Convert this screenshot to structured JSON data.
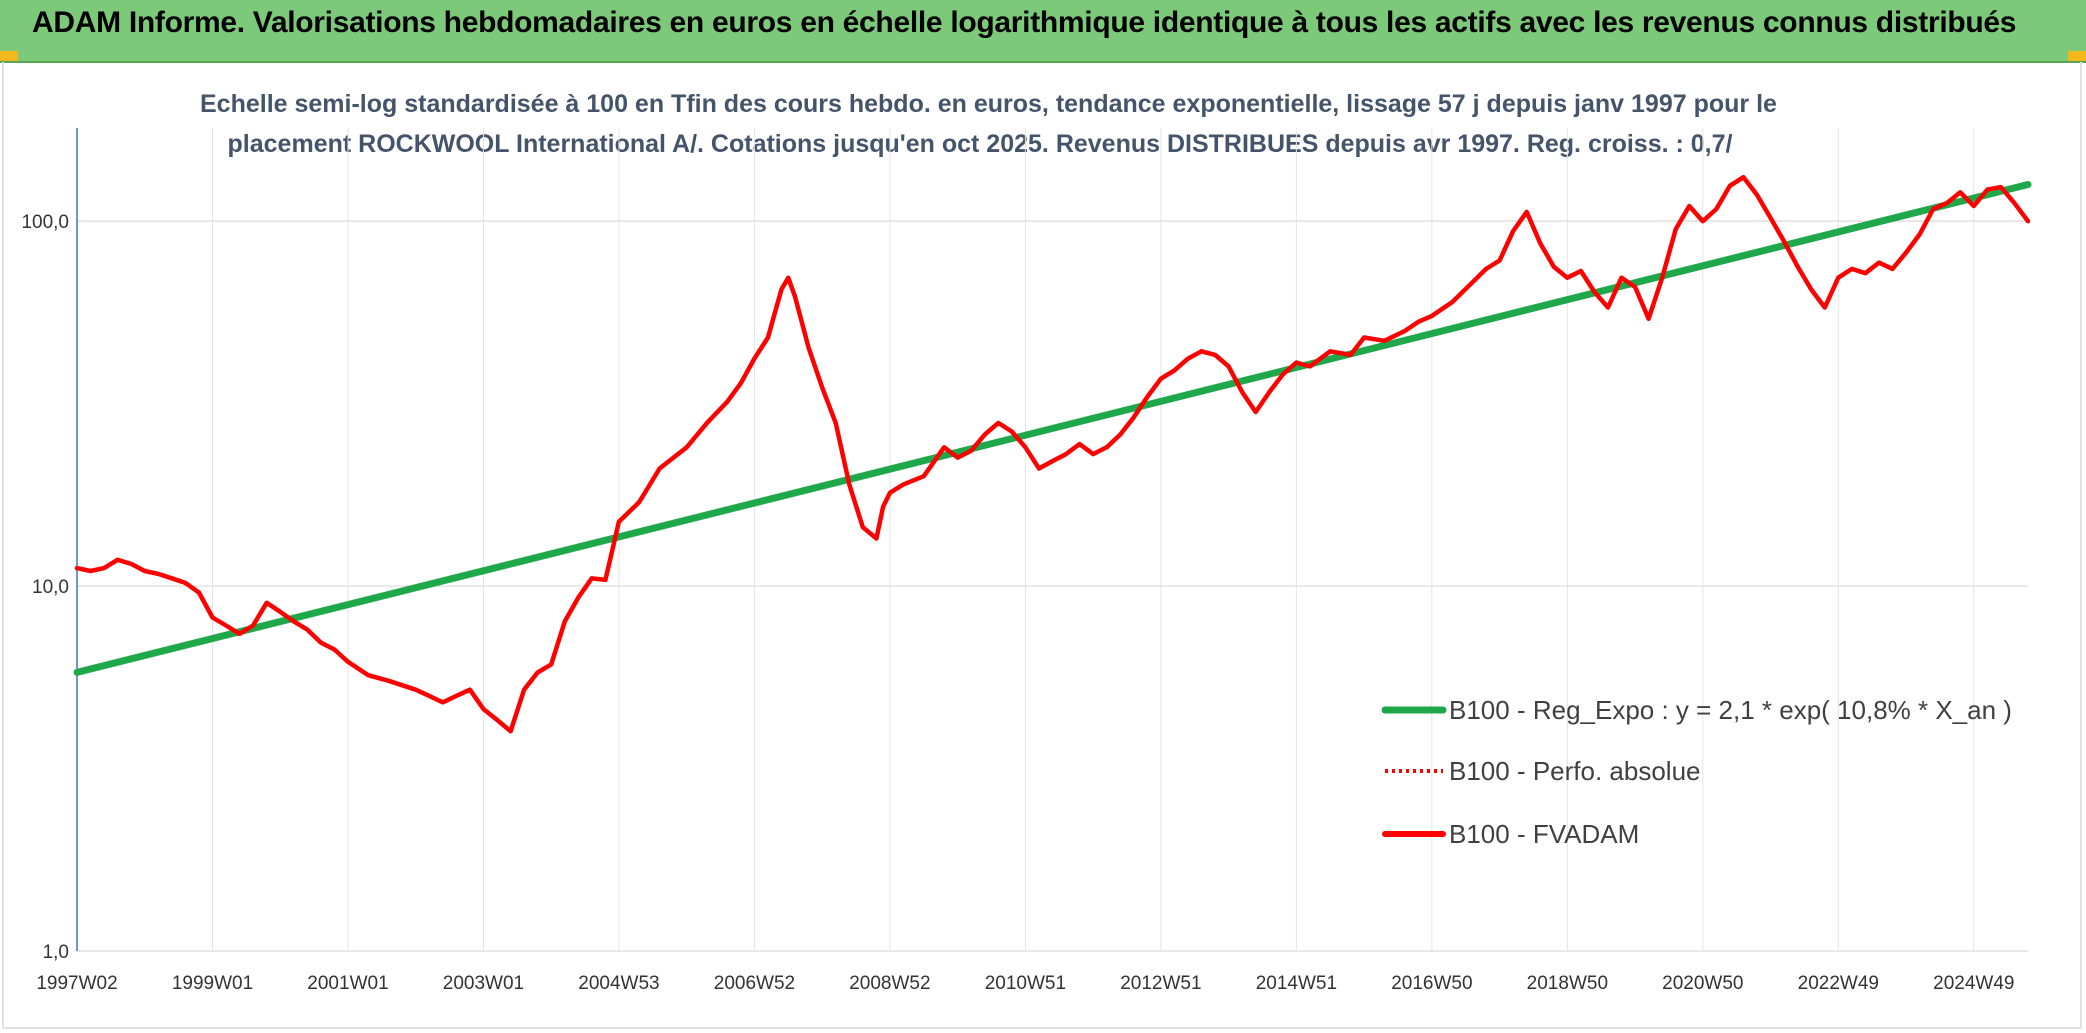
{
  "page_title": "ADAM Informe. Valorisations hebdomadaires en euros en échelle logarithmique identique à tous les actifs avec les revenus connus distribués",
  "colors": {
    "banner": "#7dc97a",
    "regression": "#1fa84a",
    "series": "#ff0000",
    "subtitle": "#44546a"
  },
  "chart_data": {
    "type": "line",
    "title_line1": "Echelle semi-log standardisée à 100 en Tfin des cours hebdo. en euros, tendance exponentielle, lissage 57 j depuis janv 1997 pour le",
    "title_line2": "placement ROCKWOOL International A/. Cotations jusqu'en oct 2025. Revenus DISTRIBUES depuis avr 1997. Reg. croiss. : 0,7/",
    "y_scale": "log",
    "ylim": [
      1,
      180
    ],
    "y_ticks": [
      {
        "value": 1,
        "label": "1,0"
      },
      {
        "value": 10,
        "label": "10,0"
      },
      {
        "value": 100,
        "label": "100,0"
      }
    ],
    "xlim": [
      1997.0,
      2025.8
    ],
    "x_ticks": [
      {
        "year": 1997.0,
        "label": "1997W02"
      },
      {
        "year": 1999.0,
        "label": "1999W01"
      },
      {
        "year": 2001.0,
        "label": "2001W01"
      },
      {
        "year": 2003.0,
        "label": "2003W01"
      },
      {
        "year": 2005.0,
        "label": "2004W53"
      },
      {
        "year": 2007.0,
        "label": "2006W52"
      },
      {
        "year": 2009.0,
        "label": "2008W52"
      },
      {
        "year": 2011.0,
        "label": "2010W51"
      },
      {
        "year": 2013.0,
        "label": "2012W51"
      },
      {
        "year": 2015.0,
        "label": "2014W51"
      },
      {
        "year": 2017.0,
        "label": "2016W50"
      },
      {
        "year": 2019.0,
        "label": "2018W50"
      },
      {
        "year": 2021.0,
        "label": "2020W50"
      },
      {
        "year": 2023.0,
        "label": "2022W49"
      },
      {
        "year": 2025.0,
        "label": "2024W49"
      }
    ],
    "legend_position": "bottom-right",
    "series": [
      {
        "name": "B100 - Reg_Expo : y = 2,1 * exp( 10,8% *  X_an )",
        "style": "solid-thick",
        "color": "#1fa84a",
        "x": [
          1997.0,
          2025.8
        ],
        "y": [
          5.8,
          126
        ]
      },
      {
        "name": "B100 - Perfo. absolue",
        "style": "dotted",
        "color": "#ff0000",
        "x": [],
        "y": []
      },
      {
        "name": "B100 - FVADAM",
        "style": "solid",
        "color": "#ff0000",
        "x": [
          1997.0,
          1997.2,
          1997.4,
          1997.6,
          1997.8,
          1998.0,
          1998.2,
          1998.4,
          1998.6,
          1998.8,
          1999.0,
          1999.2,
          1999.4,
          1999.6,
          1999.8,
          2000.0,
          2000.2,
          2000.4,
          2000.6,
          2000.8,
          2001.0,
          2001.3,
          2001.6,
          2002.0,
          2002.2,
          2002.4,
          2002.6,
          2002.8,
          2003.0,
          2003.2,
          2003.4,
          2003.6,
          2003.8,
          2004.0,
          2004.2,
          2004.4,
          2004.6,
          2004.8,
          2005.0,
          2005.3,
          2005.6,
          2006.0,
          2006.3,
          2006.6,
          2006.8,
          2007.0,
          2007.2,
          2007.3,
          2007.4,
          2007.5,
          2007.6,
          2007.8,
          2008.0,
          2008.2,
          2008.4,
          2008.6,
          2008.8,
          2008.9,
          2009.0,
          2009.2,
          2009.5,
          2009.8,
          2010.0,
          2010.2,
          2010.4,
          2010.6,
          2010.8,
          2011.0,
          2011.2,
          2011.4,
          2011.6,
          2011.8,
          2012.0,
          2012.2,
          2012.4,
          2012.6,
          2012.8,
          2013.0,
          2013.2,
          2013.4,
          2013.6,
          2013.8,
          2014.0,
          2014.2,
          2014.4,
          2014.6,
          2014.8,
          2015.0,
          2015.2,
          2015.5,
          2015.8,
          2016.0,
          2016.3,
          2016.6,
          2016.8,
          2017.0,
          2017.3,
          2017.6,
          2017.8,
          2018.0,
          2018.2,
          2018.4,
          2018.6,
          2018.8,
          2019.0,
          2019.2,
          2019.4,
          2019.6,
          2019.8,
          2020.0,
          2020.2,
          2020.4,
          2020.6,
          2020.8,
          2021.0,
          2021.2,
          2021.4,
          2021.6,
          2021.8,
          2022.0,
          2022.2,
          2022.4,
          2022.6,
          2022.8,
          2023.0,
          2023.2,
          2023.4,
          2023.6,
          2023.8,
          2024.0,
          2024.2,
          2024.4,
          2024.6,
          2024.8,
          2025.0,
          2025.2,
          2025.4,
          2025.6,
          2025.8
        ],
        "y": [
          11.2,
          11.0,
          11.2,
          11.8,
          11.5,
          11.0,
          10.8,
          10.5,
          10.2,
          9.6,
          8.2,
          7.8,
          7.4,
          7.8,
          9.0,
          8.5,
          8.0,
          7.6,
          7.0,
          6.7,
          6.2,
          5.7,
          5.5,
          5.2,
          5.0,
          4.8,
          5.0,
          5.2,
          4.6,
          4.3,
          4.0,
          5.2,
          5.8,
          6.1,
          8.0,
          9.3,
          10.5,
          10.4,
          15.0,
          17.0,
          21.0,
          24.0,
          28.0,
          32.0,
          36.0,
          42.0,
          48.0,
          56.0,
          65.0,
          70.0,
          62.0,
          45.0,
          35.0,
          28.0,
          19.0,
          14.5,
          13.5,
          16.5,
          18.0,
          19.0,
          20.0,
          24.0,
          22.5,
          23.5,
          26.0,
          28.0,
          26.5,
          24.0,
          21.0,
          22.0,
          23.0,
          24.5,
          23.0,
          24.0,
          26.0,
          29.0,
          33.0,
          37.0,
          39.0,
          42.0,
          44.0,
          43.0,
          40.0,
          34.0,
          30.0,
          34.0,
          38.0,
          41.0,
          40.0,
          44.0,
          43.0,
          48.0,
          47.0,
          50.0,
          53.0,
          55.0,
          60.0,
          68.0,
          74.0,
          78.0,
          94.0,
          106.0,
          87.0,
          75.0,
          70.0,
          73.0,
          64.0,
          58.0,
          70.0,
          66.0,
          54.0,
          70.0,
          95.0,
          110.0,
          100.0,
          108.0,
          125.0,
          132.0,
          118.0,
          102.0,
          88.0,
          75.0,
          65.0,
          58.0,
          70.0,
          74.0,
          72.0,
          77.0,
          74.0,
          82.0,
          92.0,
          108.0,
          112.0,
          120.0,
          110.0,
          122.0,
          124.0,
          112.0,
          100.0
        ]
      }
    ]
  }
}
